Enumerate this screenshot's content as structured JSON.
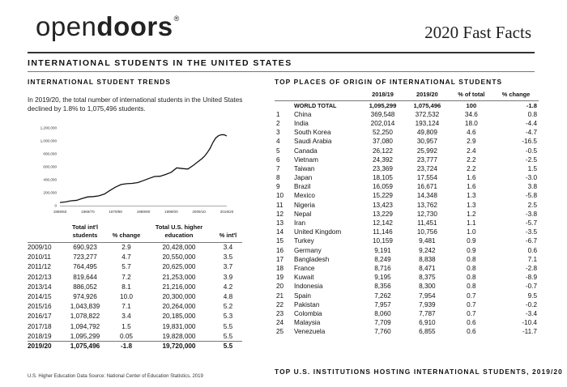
{
  "header": {
    "logo_light": "open",
    "logo_bold": "doors",
    "logo_mark": "®",
    "fast_facts": "2020 Fast Facts"
  },
  "main_title": "INTERNATIONAL STUDENTS IN THE UNITED STATES",
  "trends": {
    "title": "INTERNATIONAL STUDENT TRENDS",
    "text": "In 2019/20, the total number of international students in the United States declined by 1.8% to 1,075,496 students.",
    "chart": {
      "y_ticks": [
        "1,200,000",
        "1,000,000",
        "800,000",
        "600,000",
        "400,000",
        "200,000",
        "0"
      ],
      "x_ticks": [
        "1959/60",
        "1969/70",
        "1979/80",
        "1989/90",
        "1999/00",
        "2009/10",
        "2019/20"
      ]
    },
    "table": {
      "headers": [
        "",
        "Total int'l students",
        "% change",
        "Total U.S. higher education",
        "% int'l"
      ],
      "rows": [
        [
          "2009/10",
          "690,923",
          "2.9",
          "20,428,000",
          "3.4"
        ],
        [
          "2010/11",
          "723,277",
          "4.7",
          "20,550,000",
          "3.5"
        ],
        [
          "2011/12",
          "764,495",
          "5.7",
          "20,625,000",
          "3.7"
        ],
        [
          "2012/13",
          "819,644",
          "7.2",
          "21,253,000",
          "3.9"
        ],
        [
          "2013/14",
          "886,052",
          "8.1",
          "21,216,000",
          "4.2"
        ],
        [
          "2014/15",
          "974,926",
          "10.0",
          "20,300,000",
          "4.8"
        ],
        [
          "2015/16",
          "1,043,839",
          "7.1",
          "20,264,000",
          "5.2"
        ],
        [
          "2016/17",
          "1,078,822",
          "3.4",
          "20,185,000",
          "5.3"
        ],
        [
          "2017/18",
          "1,094,792",
          "1.5",
          "19,831,000",
          "5.5"
        ],
        [
          "2018/19",
          "1,095,299",
          "0.05",
          "19,828,000",
          "5.5"
        ],
        [
          "2019/20",
          "1,075,496",
          "-1.8",
          "19,720,000",
          "5.5"
        ]
      ]
    },
    "source": "U.S. Higher Education Data Source: National Center of Education Statistics, 2019"
  },
  "chart_data": {
    "type": "line",
    "title": "",
    "xlabel": "",
    "ylabel": "",
    "ylim": [
      0,
      1200000
    ],
    "x": [
      "1959/60",
      "1961/62",
      "1963/64",
      "1965/66",
      "1967/68",
      "1969/70",
      "1971/72",
      "1973/74",
      "1975/76",
      "1977/78",
      "1979/80",
      "1981/82",
      "1983/84",
      "1985/86",
      "1987/88",
      "1989/90",
      "1991/92",
      "1993/94",
      "1995/96",
      "1997/98",
      "1999/00",
      "2001/02",
      "2003/04",
      "2005/06",
      "2007/08",
      "2009/10",
      "2010/11",
      "2011/12",
      "2012/13",
      "2013/14",
      "2014/15",
      "2015/16",
      "2016/17",
      "2017/18",
      "2018/19",
      "2019/20"
    ],
    "series": [
      {
        "name": "Total international students",
        "values": [
          48486,
          58086,
          74814,
          82045,
          110315,
          134959,
          140126,
          151066,
          179344,
          235509,
          286343,
          326299,
          338894,
          343777,
          356187,
          386851,
          419585,
          449749,
          453787,
          481280,
          514723,
          582996,
          572509,
          564766,
          623805,
          690923,
          723277,
          764495,
          819644,
          886052,
          974926,
          1043839,
          1078822,
          1094792,
          1095299,
          1075496
        ]
      }
    ]
  },
  "origins": {
    "title": "TOP PLACES OF ORIGIN OF INTERNATIONAL STUDENTS",
    "headers": [
      "",
      "",
      "2018/19",
      "2019/20",
      "% of total",
      "% change"
    ],
    "total": [
      "",
      "WORLD TOTAL",
      "1,095,299",
      "1,075,496",
      "100",
      "-1.8"
    ],
    "rows": [
      [
        "1",
        "China",
        "369,548",
        "372,532",
        "34.6",
        "0.8"
      ],
      [
        "2",
        "India",
        "202,014",
        "193,124",
        "18.0",
        "-4.4"
      ],
      [
        "3",
        "South Korea",
        "52,250",
        "49,809",
        "4.6",
        "-4.7"
      ],
      [
        "4",
        "Saudi Arabia",
        "37,080",
        "30,957",
        "2.9",
        "-16.5"
      ],
      [
        "5",
        "Canada",
        "26,122",
        "25,992",
        "2.4",
        "-0.5"
      ],
      [
        "6",
        "Vietnam",
        "24,392",
        "23,777",
        "2.2",
        "-2.5"
      ],
      [
        "7",
        "Taiwan",
        "23,369",
        "23,724",
        "2.2",
        "1.5"
      ],
      [
        "8",
        "Japan",
        "18,105",
        "17,554",
        "1.6",
        "-3.0"
      ],
      [
        "9",
        "Brazil",
        "16,059",
        "16,671",
        "1.6",
        "3.8"
      ],
      [
        "10",
        "Mexico",
        "15,229",
        "14,348",
        "1.3",
        "-5.8"
      ],
      [
        "11",
        "Nigeria",
        "13,423",
        "13,762",
        "1.3",
        "2.5"
      ],
      [
        "12",
        "Nepal",
        "13,229",
        "12,730",
        "1.2",
        "-3.8"
      ],
      [
        "13",
        "Iran",
        "12,142",
        "11,451",
        "1.1",
        "-5.7"
      ],
      [
        "14",
        "United Kingdom",
        "11,146",
        "10,756",
        "1.0",
        "-3.5"
      ],
      [
        "15",
        "Turkey",
        "10,159",
        "9,481",
        "0.9",
        "-6.7"
      ],
      [
        "16",
        "Germany",
        "9,191",
        "9,242",
        "0.9",
        "0.6"
      ],
      [
        "17",
        "Bangladesh",
        "8,249",
        "8,838",
        "0.8",
        "7.1"
      ],
      [
        "18",
        "France",
        "8,716",
        "8,471",
        "0.8",
        "-2.8"
      ],
      [
        "19",
        "Kuwait",
        "9,195",
        "8,375",
        "0.8",
        "-8.9"
      ],
      [
        "20",
        "Indonesia",
        "8,356",
        "8,300",
        "0.8",
        "-0.7"
      ],
      [
        "21",
        "Spain",
        "7,262",
        "7,954",
        "0.7",
        "9.5"
      ],
      [
        "22",
        "Pakistan",
        "7,957",
        "7,939",
        "0.7",
        "-0.2"
      ],
      [
        "23",
        "Colombia",
        "8,060",
        "7,787",
        "0.7",
        "-3.4"
      ],
      [
        "24",
        "Malaysia",
        "7,709",
        "6,910",
        "0.6",
        "-10.4"
      ],
      [
        "25",
        "Venezuela",
        "7,760",
        "6,855",
        "0.6",
        "-11.7"
      ]
    ]
  },
  "institutions": {
    "title": "TOP U.S. INSTITUTIONS HOSTING INTERNATIONAL STUDENTS, 2019/20"
  },
  "colors": {
    "text": "#111111",
    "rule": "#333333",
    "line": "#111111"
  }
}
